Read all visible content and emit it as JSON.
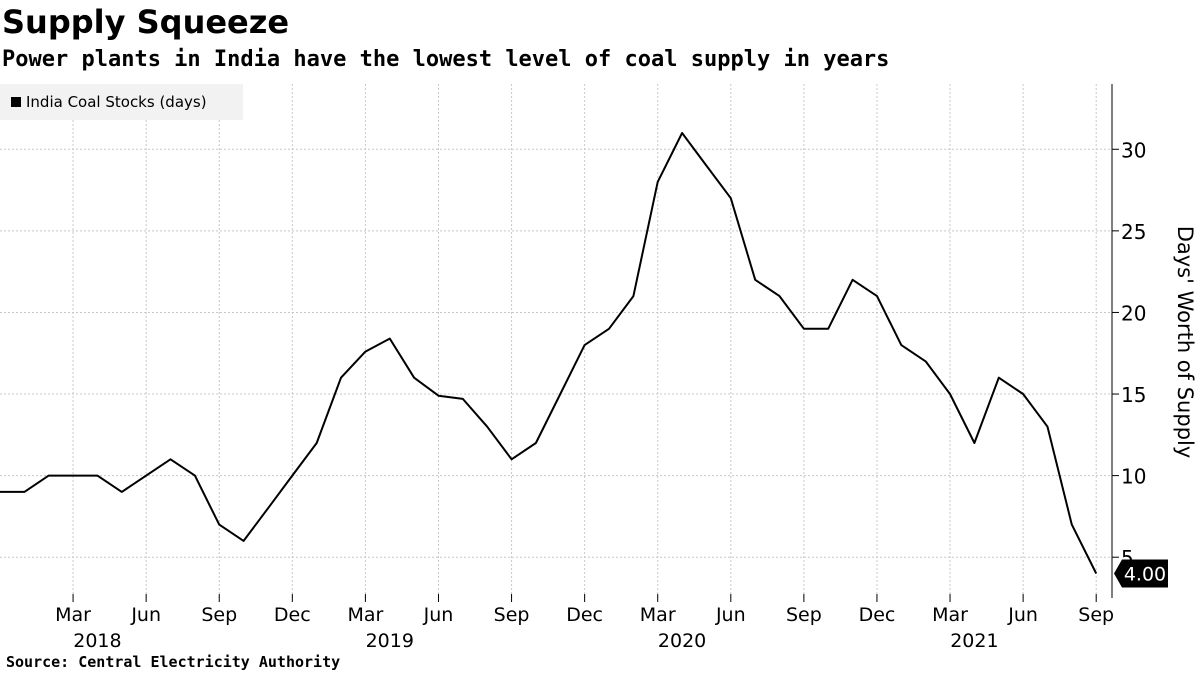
{
  "title": "Supply Squeeze",
  "subtitle": "Power plants in India have the lowest level of coal supply in years",
  "source": "Source: Central Electricity Authority",
  "chart_data": {
    "type": "line",
    "ylabel": "Days' Worth of Supply",
    "ylim": [
      2.5,
      34
    ],
    "y_ticks": [
      5,
      10,
      15,
      20,
      25,
      30
    ],
    "x_ticks": [
      {
        "date": "2018-03",
        "label": "Mar"
      },
      {
        "date": "2018-06",
        "label": "Jun"
      },
      {
        "date": "2018-09",
        "label": "Sep"
      },
      {
        "date": "2018-12",
        "label": "Dec"
      },
      {
        "date": "2019-03",
        "label": "Mar"
      },
      {
        "date": "2019-06",
        "label": "Jun"
      },
      {
        "date": "2019-09",
        "label": "Sep"
      },
      {
        "date": "2019-12",
        "label": "Dec"
      },
      {
        "date": "2020-03",
        "label": "Mar"
      },
      {
        "date": "2020-06",
        "label": "Jun"
      },
      {
        "date": "2020-09",
        "label": "Sep"
      },
      {
        "date": "2020-12",
        "label": "Dec"
      },
      {
        "date": "2021-03",
        "label": "Mar"
      },
      {
        "date": "2021-06",
        "label": "Jun"
      },
      {
        "date": "2021-09",
        "label": "Sep"
      }
    ],
    "year_labels": [
      {
        "date": "2018-04",
        "label": "2018"
      },
      {
        "date": "2019-04",
        "label": "2019"
      },
      {
        "date": "2020-04",
        "label": "2020"
      },
      {
        "date": "2021-04",
        "label": "2021"
      }
    ],
    "grid": true,
    "legend_position": "top-left",
    "series": [
      {
        "name": "India Coal Stocks (days)",
        "color": "#000000",
        "x": [
          "2017-12",
          "2018-01",
          "2018-02",
          "2018-03",
          "2018-04",
          "2018-05",
          "2018-06",
          "2018-07",
          "2018-08",
          "2018-09",
          "2018-10",
          "2018-11",
          "2018-12",
          "2019-01",
          "2019-02",
          "2019-03",
          "2019-04",
          "2019-05",
          "2019-06",
          "2019-07",
          "2019-08",
          "2019-09",
          "2019-10",
          "2019-11",
          "2019-12",
          "2020-01",
          "2020-02",
          "2020-03",
          "2020-04",
          "2020-05",
          "2020-06",
          "2020-07",
          "2020-08",
          "2020-09",
          "2020-10",
          "2020-11",
          "2020-12",
          "2021-01",
          "2021-02",
          "2021-03",
          "2021-04",
          "2021-05",
          "2021-06",
          "2021-07",
          "2021-08",
          "2021-09"
        ],
        "values": [
          9,
          9,
          10,
          10,
          10,
          9,
          10,
          11,
          10,
          7,
          6,
          8,
          10,
          12,
          16,
          17.6,
          18.4,
          16,
          14.9,
          14.7,
          13,
          11,
          12,
          15,
          18,
          19,
          21,
          28,
          31,
          29,
          27,
          22,
          21,
          19,
          19,
          22,
          21,
          18,
          17,
          15,
          12,
          16,
          15,
          13,
          7,
          4
        ]
      }
    ],
    "last_value_label": "4.00"
  }
}
